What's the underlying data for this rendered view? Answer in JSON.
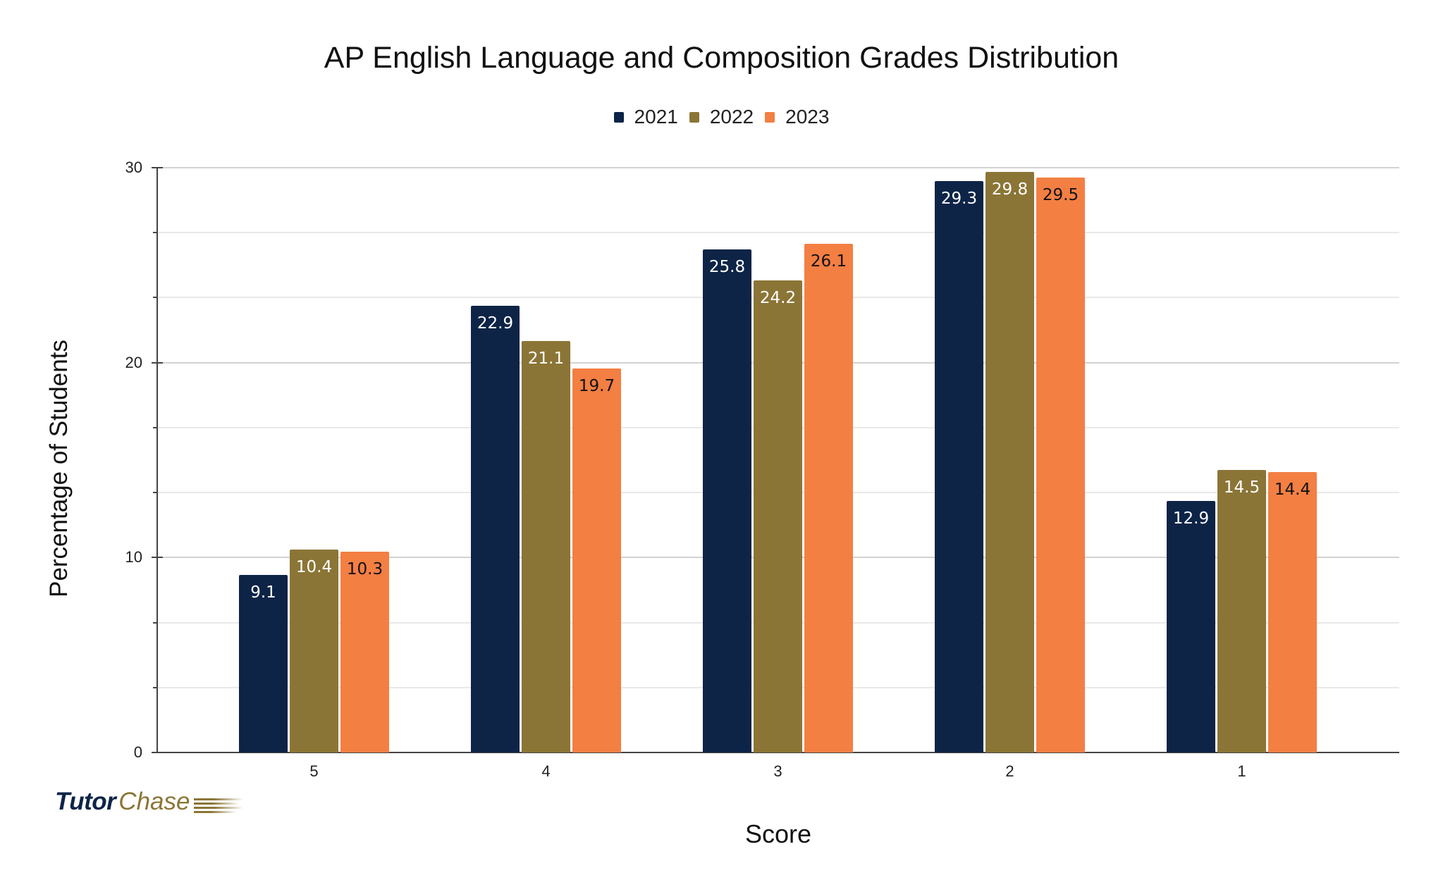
{
  "chart": {
    "title": "AP English Language and Composition Grades Distribution",
    "x_title": "Score",
    "y_title": "Percentage of Students",
    "legend": [
      {
        "label": "2021",
        "color": "#0d2447"
      },
      {
        "label": "2022",
        "color": "#8b7536"
      },
      {
        "label": "2023",
        "color": "#f37f43"
      }
    ],
    "y_ticks": [
      "0",
      "10",
      "20",
      "30"
    ],
    "x_ticks": [
      "5",
      "4",
      "3",
      "2",
      "1"
    ]
  },
  "logo": {
    "part1": "Tutor",
    "part2": "Chase"
  },
  "chart_data": {
    "type": "bar",
    "title": "AP English Language and Composition Grades Distribution",
    "xlabel": "Score",
    "ylabel": "Percentage of Students",
    "categories": [
      "5",
      "4",
      "3",
      "2",
      "1"
    ],
    "series": [
      {
        "name": "2021",
        "color": "#0d2447",
        "values": [
          9.1,
          22.9,
          25.8,
          29.3,
          12.9
        ]
      },
      {
        "name": "2022",
        "color": "#8b7536",
        "values": [
          10.4,
          21.1,
          24.2,
          29.8,
          14.5
        ]
      },
      {
        "name": "2023",
        "color": "#f37f43",
        "values": [
          10.3,
          19.7,
          26.1,
          29.5,
          14.4
        ]
      }
    ],
    "ylim": [
      0,
      30
    ],
    "y_ticks": [
      0,
      10,
      20,
      30
    ],
    "grid": true,
    "legend_position": "top",
    "data_labels": true
  }
}
